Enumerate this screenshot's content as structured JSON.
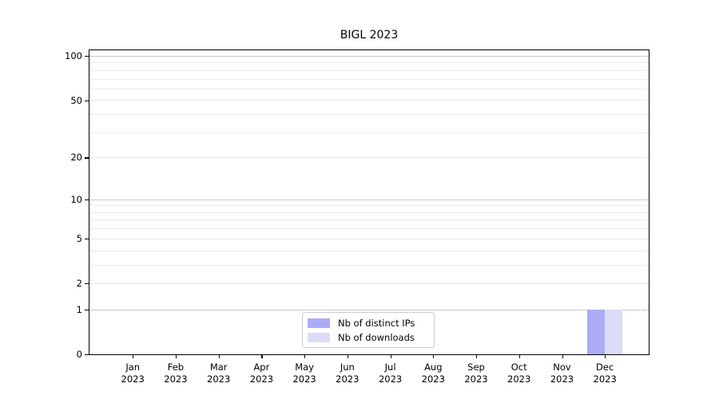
{
  "chart_data": {
    "type": "bar",
    "title": "BIGL 2023",
    "x_categories": [
      "Jan",
      "Feb",
      "Mar",
      "Apr",
      "May",
      "Jun",
      "Jul",
      "Aug",
      "Sep",
      "Oct",
      "Nov",
      "Dec"
    ],
    "x_year_label": "2023",
    "series": [
      {
        "name": "Nb of distinct IPs",
        "color": "#ababf8",
        "values": [
          0,
          0,
          0,
          0,
          0,
          0,
          0,
          0,
          0,
          0,
          0,
          1
        ]
      },
      {
        "name": "Nb of downloads",
        "color": "#dcdcf8",
        "values": [
          0,
          0,
          0,
          0,
          0,
          0,
          0,
          0,
          0,
          0,
          0,
          1
        ]
      }
    ],
    "yscale": "log1p",
    "ylim": [
      0,
      109
    ],
    "yticks": [
      0,
      1,
      2,
      5,
      10,
      20,
      50,
      100
    ],
    "minor_grid_values": [
      3,
      4,
      6,
      7,
      8,
      9,
      30,
      40,
      60,
      70,
      80,
      90
    ],
    "decade_grid_values": [
      1,
      10,
      100
    ],
    "grid": true,
    "legend_position": "bottom-center-inside",
    "colors": {
      "axis": "#000000",
      "grid_minor": "#ececec",
      "grid_decade": "#c9c9c9",
      "legend_border": "#cccccc"
    }
  }
}
